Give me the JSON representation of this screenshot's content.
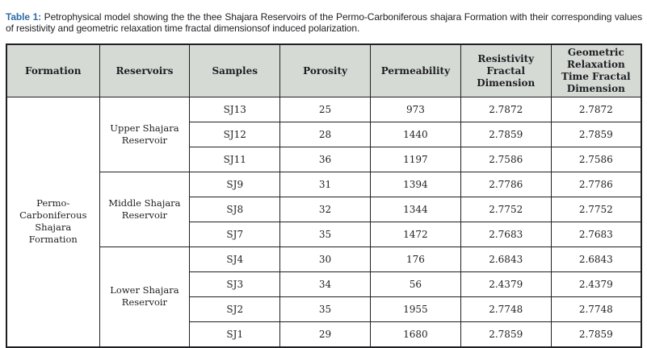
{
  "title": {
    "prefix": "Table 1:",
    "text": "Petrophysical model showing the the thee Shajara Reservoirs of the Permo-Carboniferous shajara Formation with their corresponding values of resistivity and geometric relaxation time fractal dimensionsof induced polarization."
  },
  "colors": {
    "header_bg": "#d6dad5",
    "border": "#1f1f23",
    "title_accent": "#2e6ca6",
    "text": "#1f1f23",
    "page_bg": "#ffffff"
  },
  "table": {
    "columns": [
      "Formation",
      "Reservoirs",
      "Samples",
      "Porosity",
      "Permeability",
      "Resistivity Fractal Dimension",
      "Geometric Relaxation Time Fractal Dimension"
    ],
    "formation": "Permo-Carboniferous Shajara Formation",
    "groups": [
      {
        "reservoir": "Upper Shajara Reservoir",
        "rows": [
          {
            "sample": "SJ13",
            "porosity": "25",
            "permeability": "973",
            "resistivity_fractal_dimension": "2.7872",
            "geometric_relaxation_time_fractal_dimension": "2.7872"
          },
          {
            "sample": "SJ12",
            "porosity": "28",
            "permeability": "1440",
            "resistivity_fractal_dimension": "2.7859",
            "geometric_relaxation_time_fractal_dimension": "2.7859"
          },
          {
            "sample": "SJ11",
            "porosity": "36",
            "permeability": "1197",
            "resistivity_fractal_dimension": "2.7586",
            "geometric_relaxation_time_fractal_dimension": "2.7586"
          }
        ]
      },
      {
        "reservoir": "Middle Shajara Reservoir",
        "rows": [
          {
            "sample": "SJ9",
            "porosity": "31",
            "permeability": "1394",
            "resistivity_fractal_dimension": "2.7786",
            "geometric_relaxation_time_fractal_dimension": "2.7786"
          },
          {
            "sample": "SJ8",
            "porosity": "32",
            "permeability": "1344",
            "resistivity_fractal_dimension": "2.7752",
            "geometric_relaxation_time_fractal_dimension": "2.7752"
          },
          {
            "sample": "SJ7",
            "porosity": "35",
            "permeability": "1472",
            "resistivity_fractal_dimension": "2.7683",
            "geometric_relaxation_time_fractal_dimension": "2.7683"
          }
        ]
      },
      {
        "reservoir": "Lower Shajara Reservoir",
        "rows": [
          {
            "sample": "SJ4",
            "porosity": "30",
            "permeability": "176",
            "resistivity_fractal_dimension": "2.6843",
            "geometric_relaxation_time_fractal_dimension": "2.6843"
          },
          {
            "sample": "SJ3",
            "porosity": "34",
            "permeability": "56",
            "resistivity_fractal_dimension": "2.4379",
            "geometric_relaxation_time_fractal_dimension": "2.4379"
          },
          {
            "sample": "SJ2",
            "porosity": "35",
            "permeability": "1955",
            "resistivity_fractal_dimension": "2.7748",
            "geometric_relaxation_time_fractal_dimension": "2.7748"
          },
          {
            "sample": "SJ1",
            "porosity": "29",
            "permeability": "1680",
            "resistivity_fractal_dimension": "2.7859",
            "geometric_relaxation_time_fractal_dimension": "2.7859"
          }
        ]
      }
    ]
  }
}
